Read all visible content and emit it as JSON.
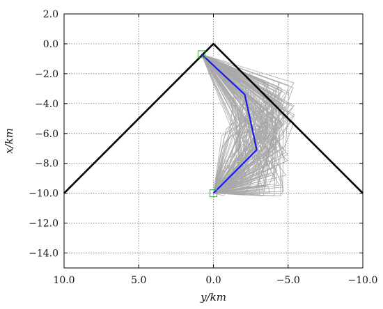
{
  "chart_data": {
    "type": "line",
    "title": "",
    "xlabel": "y/km",
    "ylabel": "x/km",
    "x_axis": {
      "range": [
        10.0,
        -10.0
      ],
      "ticks": [
        10.0,
        5.0,
        0.0,
        -5.0,
        -10.0
      ],
      "tick_labels": [
        "10.0",
        "5.0",
        "0.0",
        "−5.0",
        "−10.0"
      ]
    },
    "y_axis": {
      "range": [
        -15.0,
        2.0
      ],
      "ticks": [
        2.0,
        0.0,
        -2.0,
        -4.0,
        -6.0,
        -8.0,
        -10.0,
        -12.0,
        -14.0
      ],
      "tick_labels": [
        "2.0",
        "0.0",
        "−2.0",
        "−4.0",
        "−6.0",
        "−8.0",
        "−10.0",
        "−12.0",
        "−14.0"
      ]
    },
    "grid": true,
    "legend": "none",
    "series": [
      {
        "color": "#000000",
        "points": [
          [
            10.0,
            -10.0
          ],
          [
            0.0,
            0.0
          ],
          [
            -10.0,
            -10.0
          ]
        ]
      },
      {
        "color": "#1a1aee",
        "points": [
          [
            0.8,
            -0.7
          ],
          [
            -2.1,
            -3.4
          ],
          [
            -2.9,
            -7.1
          ],
          [
            0.0,
            -10.0
          ]
        ]
      }
    ],
    "trajectory_cloud": {
      "color": "#a9a9a9",
      "start": [
        0.8,
        -0.7
      ],
      "end": [
        0.0,
        -10.0
      ],
      "mid1_range": {
        "y": [
          -1.0,
          -5.5
        ],
        "x": [
          -2.5,
          -6.0
        ]
      },
      "mid2_range": {
        "y": [
          -0.5,
          -5.0
        ],
        "x": [
          -5.5,
          -10.2
        ]
      }
    },
    "markers": [
      {
        "shape": "square",
        "color": "#3aa83a",
        "point": [
          0.8,
          -0.7
        ]
      },
      {
        "shape": "square",
        "color": "#3aa83a",
        "point": [
          0.0,
          -10.0
        ]
      }
    ]
  }
}
